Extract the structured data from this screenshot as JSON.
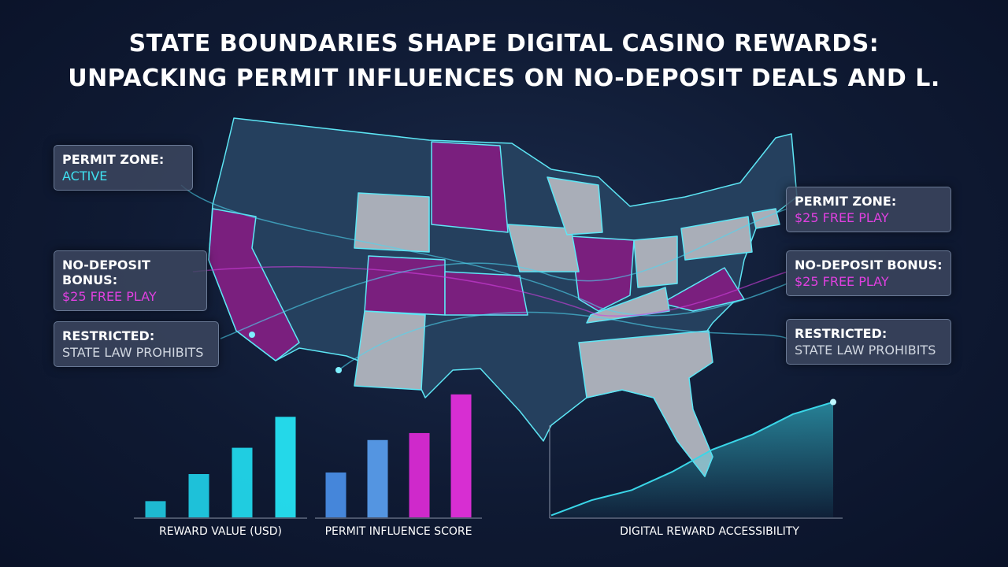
{
  "title": {
    "lines": [
      "STATE BOUNDARIES SHAPE DIGITAL CASINO REWARDS:",
      "UNPACKING PERMIT INFLUENCES ON NO-DEPOSIT DEALS AND L."
    ]
  },
  "callouts": {
    "left": [
      {
        "label": "PERMIT ZONE:",
        "detail": "ACTIVE"
      },
      {
        "label": "NO-DEPOSIT BONUS:",
        "detail": "$25 FREE PLAY"
      },
      {
        "label": "RESTRICTED:",
        "detail": "STATE LAW PROHIBITS"
      }
    ],
    "right": [
      {
        "label": "PERMIT ZONE:",
        "detail": "$25 FREE PLAY"
      },
      {
        "label": "NO-DEPOSIT BONUS:",
        "detail": "$25 FREE PLAY"
      },
      {
        "label": "RESTRICTED:",
        "detail": "STATE LAW PROHIBITS"
      }
    ]
  },
  "chart_data": [
    {
      "type": "bar",
      "xlabel": "REWARD VALUE (USD)",
      "values": [
        21,
        56,
        90,
        130
      ],
      "colors": [
        "#1fc8e0",
        "#1fd0e8",
        "#22dcf0",
        "#26e8f8"
      ],
      "ylim": [
        0,
        170
      ]
    },
    {
      "type": "bar",
      "xlabel": "PERMIT INFLUENCE SCORE",
      "values": [
        58,
        100,
        109,
        159
      ],
      "colors": [
        "#4a8fe8",
        "#5aa0f0",
        "#e02ad8",
        "#e830e0"
      ],
      "ylim": [
        0,
        170
      ]
    },
    {
      "type": "line",
      "xlabel": "DIGITAL REWARD ACCESSIBILITY",
      "values": [
        2,
        17,
        27,
        45,
        67,
        82,
        102,
        114
      ],
      "color": "#3ad6e8",
      "ylim": [
        0,
        130
      ]
    }
  ]
}
